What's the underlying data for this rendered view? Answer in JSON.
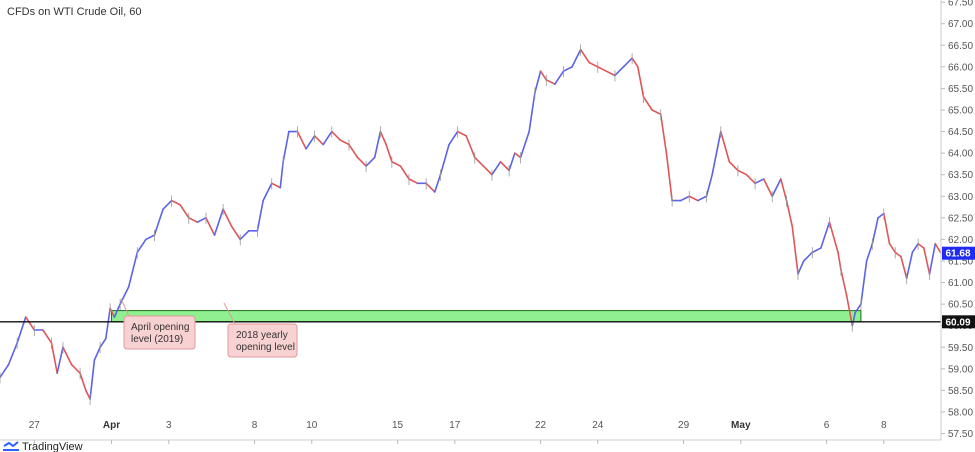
{
  "chart_data": {
    "type": "line",
    "title": "CFDs on WTI Crude Oil, 60",
    "ylim": [
      57.35,
      67.55
    ],
    "y_ticks": [
      "57.50",
      "58.00",
      "58.50",
      "59.00",
      "59.50",
      "60.00",
      "60.50",
      "61.00",
      "61.50",
      "62.00",
      "62.50",
      "63.00",
      "63.50",
      "64.00",
      "64.50",
      "65.00",
      "65.50",
      "66.00",
      "66.50",
      "67.00",
      "67.50"
    ],
    "x_ticks": [
      {
        "label": "27",
        "x": 0.3,
        "bold": false
      },
      {
        "label": "Apr",
        "x": 3.0,
        "bold": true
      },
      {
        "label": "3",
        "x": 5.0,
        "bold": false
      },
      {
        "label": "8",
        "x": 8.0,
        "bold": false
      },
      {
        "label": "10",
        "x": 10.0,
        "bold": false
      },
      {
        "label": "15",
        "x": 13.0,
        "bold": false
      },
      {
        "label": "17",
        "x": 15.0,
        "bold": false
      },
      {
        "label": "22",
        "x": 18.0,
        "bold": false
      },
      {
        "label": "24",
        "x": 20.0,
        "bold": false
      },
      {
        "label": "29",
        "x": 23.0,
        "bold": false
      },
      {
        "label": "May",
        "x": 25.0,
        "bold": true
      },
      {
        "label": "6",
        "x": 28.0,
        "bold": false
      },
      {
        "label": "8",
        "x": 30.0,
        "bold": false
      }
    ],
    "xlim": [
      -0.9,
      32.0
    ],
    "series": [
      {
        "values": [
          [
            -0.9,
            58.8
          ],
          [
            -0.6,
            59.1
          ],
          [
            -0.3,
            59.6
          ],
          [
            0.0,
            60.2
          ],
          [
            0.3,
            59.9
          ],
          [
            0.6,
            59.9
          ],
          [
            0.9,
            59.6
          ],
          [
            1.1,
            58.9
          ],
          [
            1.3,
            59.5
          ],
          [
            1.6,
            59.1
          ],
          [
            1.9,
            58.9
          ],
          [
            2.1,
            58.5
          ],
          [
            2.25,
            58.3
          ],
          [
            2.4,
            59.2
          ],
          [
            2.6,
            59.5
          ],
          [
            2.8,
            59.7
          ],
          [
            2.95,
            60.4
          ],
          [
            3.1,
            60.2
          ],
          [
            3.3,
            60.5
          ],
          [
            3.6,
            60.9
          ],
          [
            3.9,
            61.7
          ],
          [
            4.2,
            62.0
          ],
          [
            4.5,
            62.1
          ],
          [
            4.8,
            62.7
          ],
          [
            5.1,
            62.9
          ],
          [
            5.4,
            62.8
          ],
          [
            5.7,
            62.5
          ],
          [
            6.0,
            62.4
          ],
          [
            6.3,
            62.5
          ],
          [
            6.6,
            62.1
          ],
          [
            6.9,
            62.7
          ],
          [
            7.2,
            62.3
          ],
          [
            7.5,
            62.0
          ],
          [
            7.8,
            62.2
          ],
          [
            8.1,
            62.2
          ],
          [
            8.3,
            62.9
          ],
          [
            8.6,
            63.3
          ],
          [
            8.9,
            63.2
          ],
          [
            9.0,
            63.8
          ],
          [
            9.2,
            64.5
          ],
          [
            9.5,
            64.5
          ],
          [
            9.8,
            64.1
          ],
          [
            10.1,
            64.4
          ],
          [
            10.4,
            64.2
          ],
          [
            10.7,
            64.5
          ],
          [
            11.0,
            64.3
          ],
          [
            11.3,
            64.2
          ],
          [
            11.6,
            63.9
          ],
          [
            11.9,
            63.7
          ],
          [
            12.2,
            63.9
          ],
          [
            12.4,
            64.5
          ],
          [
            12.6,
            64.2
          ],
          [
            12.8,
            63.8
          ],
          [
            13.1,
            63.7
          ],
          [
            13.4,
            63.4
          ],
          [
            13.7,
            63.3
          ],
          [
            14.0,
            63.3
          ],
          [
            14.3,
            63.1
          ],
          [
            14.5,
            63.5
          ],
          [
            14.8,
            64.2
          ],
          [
            15.1,
            64.5
          ],
          [
            15.4,
            64.4
          ],
          [
            15.7,
            63.9
          ],
          [
            16.0,
            63.7
          ],
          [
            16.3,
            63.5
          ],
          [
            16.6,
            63.8
          ],
          [
            16.9,
            63.6
          ],
          [
            17.1,
            64.0
          ],
          [
            17.3,
            63.9
          ],
          [
            17.6,
            64.5
          ],
          [
            17.8,
            65.4
          ],
          [
            18.0,
            65.9
          ],
          [
            18.2,
            65.7
          ],
          [
            18.5,
            65.6
          ],
          [
            18.8,
            65.9
          ],
          [
            19.1,
            66.0
          ],
          [
            19.4,
            66.4
          ],
          [
            19.7,
            66.1
          ],
          [
            20.0,
            66.0
          ],
          [
            20.3,
            65.9
          ],
          [
            20.6,
            65.8
          ],
          [
            20.9,
            66.0
          ],
          [
            21.2,
            66.2
          ],
          [
            21.4,
            66.0
          ],
          [
            21.6,
            65.3
          ],
          [
            21.9,
            65.0
          ],
          [
            22.2,
            64.9
          ],
          [
            22.4,
            64.0
          ],
          [
            22.6,
            62.9
          ],
          [
            22.9,
            62.9
          ],
          [
            23.2,
            63.0
          ],
          [
            23.5,
            62.9
          ],
          [
            23.8,
            63.0
          ],
          [
            24.0,
            63.5
          ],
          [
            24.3,
            64.5
          ],
          [
            24.6,
            63.8
          ],
          [
            24.9,
            63.6
          ],
          [
            25.2,
            63.5
          ],
          [
            25.5,
            63.3
          ],
          [
            25.8,
            63.4
          ],
          [
            26.1,
            63.0
          ],
          [
            26.4,
            63.4
          ],
          [
            26.6,
            62.9
          ],
          [
            26.8,
            62.3
          ],
          [
            27.0,
            61.2
          ],
          [
            27.2,
            61.5
          ],
          [
            27.5,
            61.7
          ],
          [
            27.8,
            61.8
          ],
          [
            28.1,
            62.4
          ],
          [
            28.4,
            61.7
          ],
          [
            28.5,
            61.3
          ],
          [
            28.7,
            60.7
          ],
          [
            28.9,
            60.0
          ],
          [
            29.0,
            60.3
          ],
          [
            29.2,
            60.5
          ],
          [
            29.4,
            61.5
          ],
          [
            29.6,
            61.9
          ],
          [
            29.8,
            62.5
          ],
          [
            30.0,
            62.6
          ],
          [
            30.2,
            61.9
          ],
          [
            30.4,
            61.7
          ],
          [
            30.6,
            61.6
          ],
          [
            30.8,
            61.1
          ],
          [
            31.0,
            61.7
          ],
          [
            31.2,
            61.9
          ],
          [
            31.4,
            61.8
          ],
          [
            31.6,
            61.2
          ],
          [
            31.8,
            61.9
          ],
          [
            32.0,
            61.68
          ]
        ]
      }
    ],
    "zone": {
      "y_low": 60.09,
      "y_high": 60.35,
      "x_start": 3.0,
      "x_end": 29.2,
      "color": "#8ef08e",
      "border": "#1b6e1b"
    },
    "level_line": {
      "y": 60.09,
      "label": "60.09"
    },
    "current_price": {
      "y": 61.68,
      "label": "61.68"
    },
    "annotations": [
      {
        "text_lines": [
          "April opening",
          "level (2019)"
        ]
      },
      {
        "text_lines": [
          "2018 yearly",
          "opening level"
        ]
      }
    ],
    "colors": {
      "up": "#5b63e6",
      "down": "#e05555",
      "axis": "#cfcfcf",
      "price_tag_bg": "#1f2af3",
      "level_tag_bg": "#111111",
      "note_bg": "#f8d2d2",
      "note_border": "#e09a9a"
    },
    "grid": false
  },
  "footer": {
    "brand": "TradingView"
  }
}
